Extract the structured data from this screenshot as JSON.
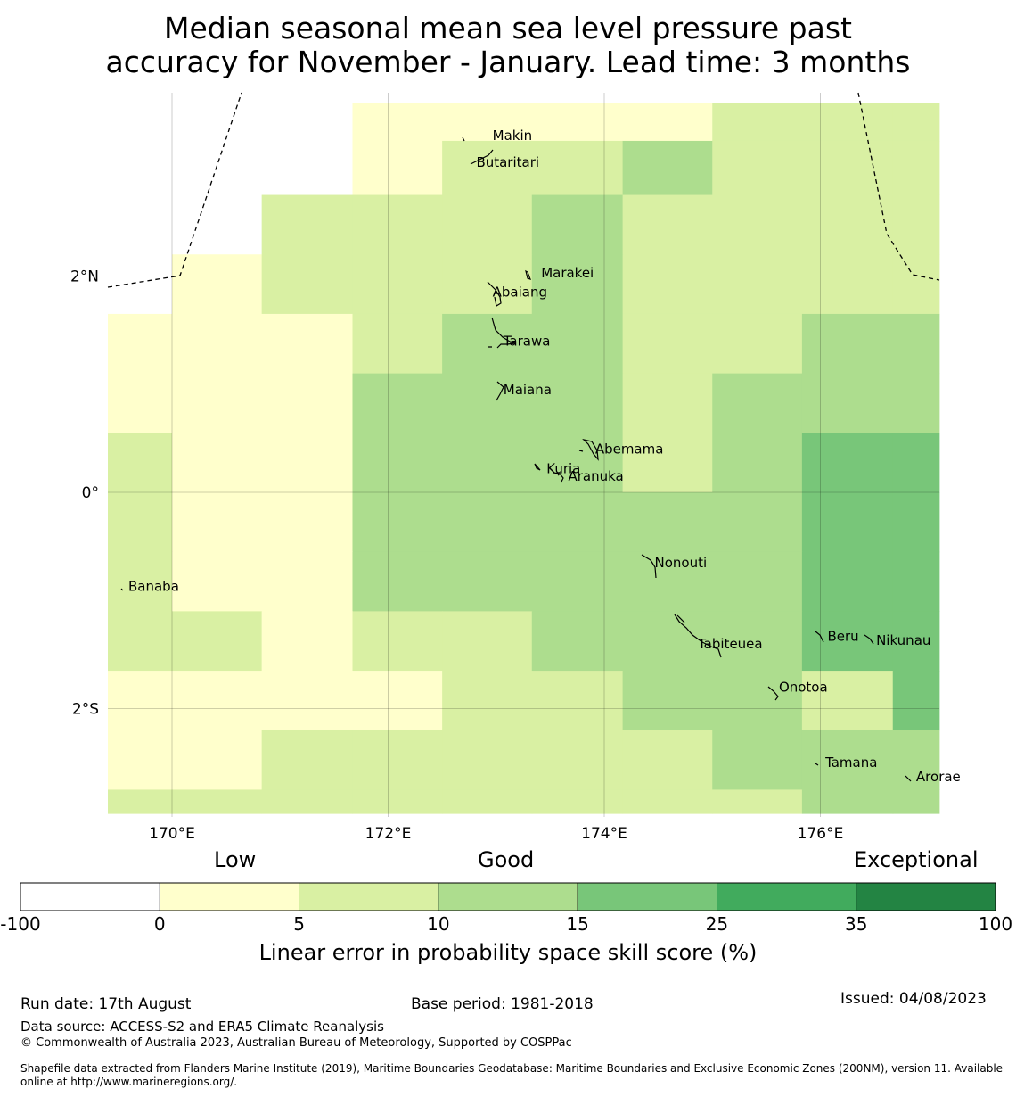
{
  "title": {
    "line1": "Median seasonal mean sea level pressure past",
    "line2": "accuracy for November - January. Lead time: 3 months"
  },
  "map": {
    "lon_ticks": [
      "170°E",
      "172°E",
      "174°E",
      "176°E"
    ],
    "lat_ticks": [
      "2°N",
      "0°",
      "2°S"
    ],
    "islands": [
      {
        "name": "Makin",
        "lon": 172.9,
        "lat": 3.3
      },
      {
        "name": "Butaritari",
        "lon": 172.75,
        "lat": 3.05
      },
      {
        "name": "Marakei",
        "lon": 173.35,
        "lat": 2.03
      },
      {
        "name": "Abaiang",
        "lon": 172.9,
        "lat": 1.85
      },
      {
        "name": "Tarawa",
        "lon": 173.0,
        "lat": 1.4
      },
      {
        "name": "Maiana",
        "lon": 173.0,
        "lat": 0.95
      },
      {
        "name": "Abemama",
        "lon": 173.85,
        "lat": 0.4
      },
      {
        "name": "Kuria",
        "lon": 173.4,
        "lat": 0.22
      },
      {
        "name": "Aranuka",
        "lon": 173.6,
        "lat": 0.15
      },
      {
        "name": "Nonouti",
        "lon": 174.4,
        "lat": -0.65
      },
      {
        "name": "Banaba",
        "lon": 169.53,
        "lat": -0.87
      },
      {
        "name": "Beru",
        "lon": 176.0,
        "lat": -1.33
      },
      {
        "name": "Tabiteuea",
        "lon": 174.8,
        "lat": -1.4
      },
      {
        "name": "Nikunau",
        "lon": 176.45,
        "lat": -1.37
      },
      {
        "name": "Onotoa",
        "lon": 175.55,
        "lat": -1.8
      },
      {
        "name": "Tamana",
        "lon": 175.98,
        "lat": -2.5
      },
      {
        "name": "Arorae",
        "lon": 176.82,
        "lat": -2.63
      }
    ],
    "skill_grid": {
      "lon_edges": [
        169.4,
        170.0,
        170.83,
        171.67,
        172.5,
        173.33,
        174.17,
        175.0,
        175.83,
        176.67,
        177.1
      ],
      "lat_rows_top_to_bottom": [
        {
          "lat_top": 3.6,
          "lat_bottom": 3.25,
          "levels": [
            -1,
            -1,
            -1,
            0,
            0,
            0,
            0,
            1,
            1,
            1
          ]
        },
        {
          "lat_top": 3.25,
          "lat_bottom": 2.75,
          "levels": [
            -1,
            -1,
            -1,
            0,
            1,
            1,
            2,
            1,
            1,
            1
          ]
        },
        {
          "lat_top": 2.75,
          "lat_bottom": 2.2,
          "levels": [
            -1,
            -1,
            1,
            1,
            1,
            2,
            1,
            1,
            1,
            1
          ]
        },
        {
          "lat_top": 2.2,
          "lat_bottom": 1.65,
          "levels": [
            -1,
            0,
            1,
            1,
            1,
            2,
            1,
            1,
            1,
            1
          ]
        },
        {
          "lat_top": 1.65,
          "lat_bottom": 1.1,
          "levels": [
            0,
            0,
            0,
            1,
            2,
            2,
            1,
            1,
            2,
            2
          ]
        },
        {
          "lat_top": 1.1,
          "lat_bottom": 0.55,
          "levels": [
            0,
            0,
            0,
            2,
            2,
            2,
            1,
            2,
            2,
            2
          ]
        },
        {
          "lat_top": 0.55,
          "lat_bottom": 0.0,
          "levels": [
            1,
            0,
            0,
            2,
            2,
            2,
            1,
            2,
            3,
            3
          ]
        },
        {
          "lat_top": 0.0,
          "lat_bottom": -0.55,
          "levels": [
            1,
            0,
            0,
            2,
            2,
            2,
            2,
            2,
            3,
            3
          ]
        },
        {
          "lat_top": -0.55,
          "lat_bottom": -1.1,
          "levels": [
            1,
            0,
            0,
            2,
            2,
            2,
            2,
            2,
            3,
            3
          ]
        },
        {
          "lat_top": -1.1,
          "lat_bottom": -1.65,
          "levels": [
            1,
            1,
            0,
            1,
            1,
            2,
            2,
            2,
            3,
            3
          ]
        },
        {
          "lat_top": -1.65,
          "lat_bottom": -2.2,
          "levels": [
            0,
            0,
            0,
            0,
            1,
            1,
            2,
            2,
            1,
            3
          ]
        },
        {
          "lat_top": -2.2,
          "lat_bottom": -2.75,
          "levels": [
            0,
            0,
            1,
            1,
            1,
            1,
            1,
            2,
            2,
            2
          ]
        },
        {
          "lat_top": -2.75,
          "lat_bottom": -2.97,
          "levels": [
            1,
            1,
            1,
            1,
            1,
            1,
            1,
            1,
            2,
            2
          ]
        }
      ]
    }
  },
  "colorbar": {
    "category_labels": {
      "low": "Low",
      "good": "Good",
      "exceptional": "Exceptional"
    },
    "ticks": [
      "-100",
      "0",
      "5",
      "10",
      "15",
      "25",
      "35",
      "100"
    ],
    "colors": [
      "#ffffff",
      "#ffffcc",
      "#d9f0a3",
      "#addd8e",
      "#78c679",
      "#41ab5d",
      "#238443"
    ],
    "label": "Linear error in probability space skill score (%)"
  },
  "footer": {
    "run_date": "Run date: 17th August",
    "base_period": "Base period: 1981-2018",
    "issued": "Issued: 04/08/2023",
    "data_source": "Data source: ACCESS-S2 and ERA5 Climate Reanalysis",
    "copyright": "© Commonwealth of Australia 2023, Australian Bureau of Meteorology, Supported by COSPPac",
    "shapefile_1": "Shapefile data extracted from Flanders Marine Institute (2019), Maritime Boundaries Geodatabase: Maritime Boundaries and Exclusive Economic Zones (200NM), version 11. Available",
    "shapefile_2": "online at http://www.marineregions.org/."
  }
}
